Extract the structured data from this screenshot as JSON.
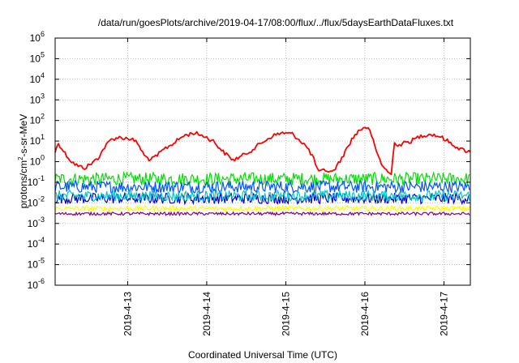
{
  "chart_data": {
    "type": "line",
    "title": "/data/run/goesPlots/archive/2019-04-17/08:00/flux/../flux/5daysEarthDataFluxes.txt",
    "xlabel": "Coordinated Universal Time (UTC)",
    "ylabel": {
      "base": "protons/cm",
      "sup": "2",
      "rest": "-s-sr-MeV"
    },
    "y_scale": "log",
    "ylim": [
      1e-06,
      1000000.0
    ],
    "y_ticks": [
      {
        "value": 1e-06,
        "base": "10",
        "exp": "-6"
      },
      {
        "value": 1e-05,
        "base": "10",
        "exp": "-5"
      },
      {
        "value": 0.0001,
        "base": "10",
        "exp": "-4"
      },
      {
        "value": 0.001,
        "base": "10",
        "exp": "-3"
      },
      {
        "value": 0.01,
        "base": "10",
        "exp": "-2"
      },
      {
        "value": 0.1,
        "base": "10",
        "exp": "-1"
      },
      {
        "value": 1,
        "base": "10",
        "exp": "0"
      },
      {
        "value": 10.0,
        "base": "10",
        "exp": "1"
      },
      {
        "value": 100.0,
        "base": "10",
        "exp": "2"
      },
      {
        "value": 1000.0,
        "base": "10",
        "exp": "3"
      },
      {
        "value": 10000.0,
        "base": "10",
        "exp": "4"
      },
      {
        "value": 100000.0,
        "base": "10",
        "exp": "5"
      },
      {
        "value": 1000000.0,
        "base": "10",
        "exp": "6"
      }
    ],
    "xlim": [
      "2019-04-12 02:00",
      "2019-04-17 08:00"
    ],
    "x_ticks": [
      {
        "value": "2019-04-13 00:00",
        "label": "2019-4-13"
      },
      {
        "value": "2019-04-14 00:00",
        "label": "2019-4-14"
      },
      {
        "value": "2019-04-15 00:00",
        "label": "2019-4-15"
      },
      {
        "value": "2019-04-16 00:00",
        "label": "2019-4-16"
      },
      {
        "value": "2019-04-17 00:00",
        "label": "2019-4-17"
      }
    ],
    "grid": true,
    "legend": "none",
    "series": [
      {
        "color": "#ff0000",
        "style": "line",
        "x": [
          "2019-04-12 02:00",
          "2019-04-12 03:00",
          "2019-04-12 05:00",
          "2019-04-12 07:00",
          "2019-04-12 09:00",
          "2019-04-12 11:00",
          "2019-04-12 13:00",
          "2019-04-12 15:00",
          "2019-04-12 17:00",
          "2019-04-12 19:00",
          "2019-04-12 21:00",
          "2019-04-12 23:00",
          "2019-04-13 01:00",
          "2019-04-13 03:00",
          "2019-04-13 05:00",
          "2019-04-13 07:00",
          "2019-04-13 09:00",
          "2019-04-13 11:00",
          "2019-04-13 14:00",
          "2019-04-13 17:00",
          "2019-04-13 20:00",
          "2019-04-13 23:00",
          "2019-04-14 02:00",
          "2019-04-14 05:00",
          "2019-04-14 08:00",
          "2019-04-14 11:00",
          "2019-04-14 14:00",
          "2019-04-14 17:00",
          "2019-04-14 20:00",
          "2019-04-14 23:00",
          "2019-04-15 02:00",
          "2019-04-15 04:00",
          "2019-04-15 06:00",
          "2019-04-15 08:00",
          "2019-04-15 10:00",
          "2019-04-15 12:00",
          "2019-04-15 14:00",
          "2019-04-15 16:00",
          "2019-04-15 18:00",
          "2019-04-15 20:00",
          "2019-04-15 22:00",
          "2019-04-16 00:00",
          "2019-04-16 01:00",
          "2019-04-16 02:00",
          "2019-04-16 03:00",
          "2019-04-16 05:00",
          "2019-04-16 07:00",
          "2019-04-16 08:00",
          "2019-04-16 09:00",
          "2019-04-16 10:00",
          "2019-04-16 12:00",
          "2019-04-16 14:00",
          "2019-04-16 17:00",
          "2019-04-16 20:00",
          "2019-04-16 23:00",
          "2019-04-17 02:00",
          "2019-04-17 05:00",
          "2019-04-17 08:00"
        ],
        "y": [
          3,
          8,
          2.5,
          1.0,
          0.6,
          0.5,
          0.8,
          1.5,
          5,
          12,
          15,
          14,
          13,
          8,
          2,
          1.2,
          2,
          4,
          8,
          18,
          25,
          18,
          10,
          3,
          1.2,
          2,
          4,
          9,
          18,
          25,
          22,
          12,
          6,
          2,
          0.3,
          0.4,
          0.3,
          0.8,
          3,
          12,
          30,
          50,
          40,
          20,
          5,
          0.8,
          0.3,
          0.25,
          10,
          6,
          8,
          10,
          18,
          22,
          16,
          8,
          4,
          3
        ]
      },
      {
        "color": "#00e000",
        "style": "band",
        "x": [
          "2019-04-12 02:00",
          "2019-04-17 08:00"
        ],
        "y_low": [
          0.07,
          0.07
        ],
        "y_high": [
          0.3,
          0.3
        ]
      },
      {
        "color": "#0055ff",
        "style": "band",
        "x": [
          "2019-04-12 02:00",
          "2019-04-17 08:00"
        ],
        "y_low": [
          0.03,
          0.03
        ],
        "y_high": [
          0.12,
          0.12
        ]
      },
      {
        "color": "#0000c8",
        "style": "band",
        "x": [
          "2019-04-12 02:00",
          "2019-04-17 08:00"
        ],
        "y_low": [
          0.009,
          0.009
        ],
        "y_high": [
          0.03,
          0.03
        ]
      },
      {
        "color": "#00c8c8",
        "style": "band",
        "x": [
          "2019-04-12 02:00",
          "2019-04-17 08:00"
        ],
        "y_low": [
          0.012,
          0.012
        ],
        "y_high": [
          0.04,
          0.04
        ]
      },
      {
        "color": "#ffff00",
        "style": "band",
        "x": [
          "2019-04-12 02:00",
          "2019-04-17 08:00"
        ],
        "y_low": [
          0.004,
          0.004
        ],
        "y_high": [
          0.007,
          0.007
        ]
      },
      {
        "color": "#800080",
        "style": "band",
        "x": [
          "2019-04-12 02:00",
          "2019-04-17 08:00"
        ],
        "y_low": [
          0.0025,
          0.0025
        ],
        "y_high": [
          0.0035,
          0.0035
        ]
      }
    ]
  }
}
